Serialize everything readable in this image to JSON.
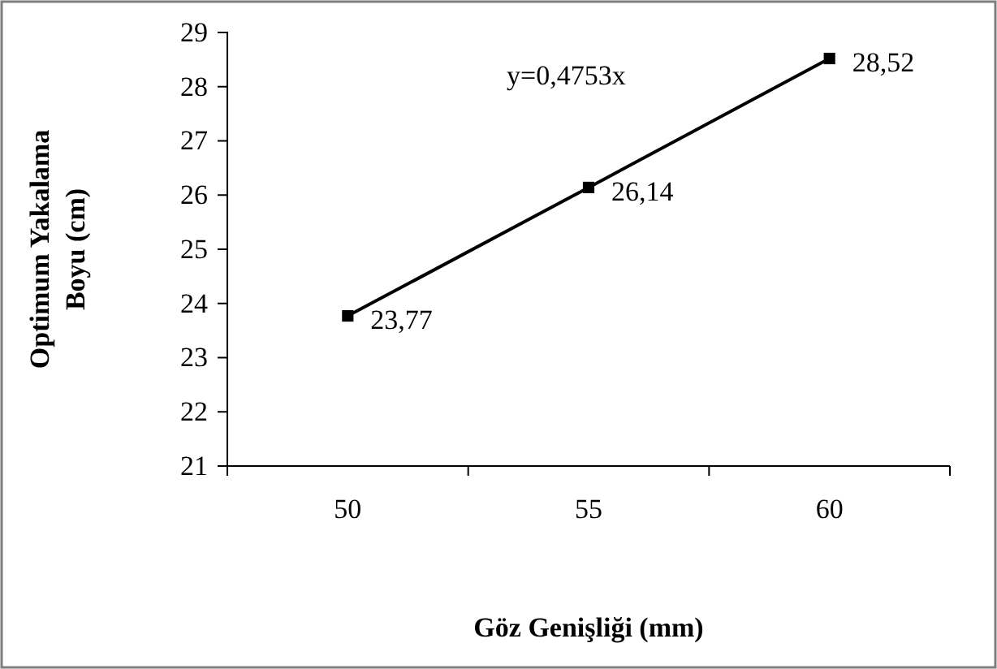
{
  "chart_data": {
    "type": "line",
    "xlabel": "Göz Genişliği (mm)",
    "ylabel": "Optimum Yakalama Boyu (cm)",
    "categories": [
      "50",
      "55",
      "60"
    ],
    "series": [
      {
        "color": "#000000",
        "values": [
          23.77,
          26.14,
          28.52
        ],
        "value_labels": [
          "23,77",
          "26,14",
          "28,52"
        ]
      }
    ],
    "ylim": [
      21,
      29
    ],
    "yticks": [
      21,
      22,
      23,
      24,
      25,
      26,
      27,
      28,
      29
    ],
    "marker": "square",
    "line_style": "solid",
    "grid": false,
    "annotations": [
      "y=0,4753x"
    ]
  }
}
